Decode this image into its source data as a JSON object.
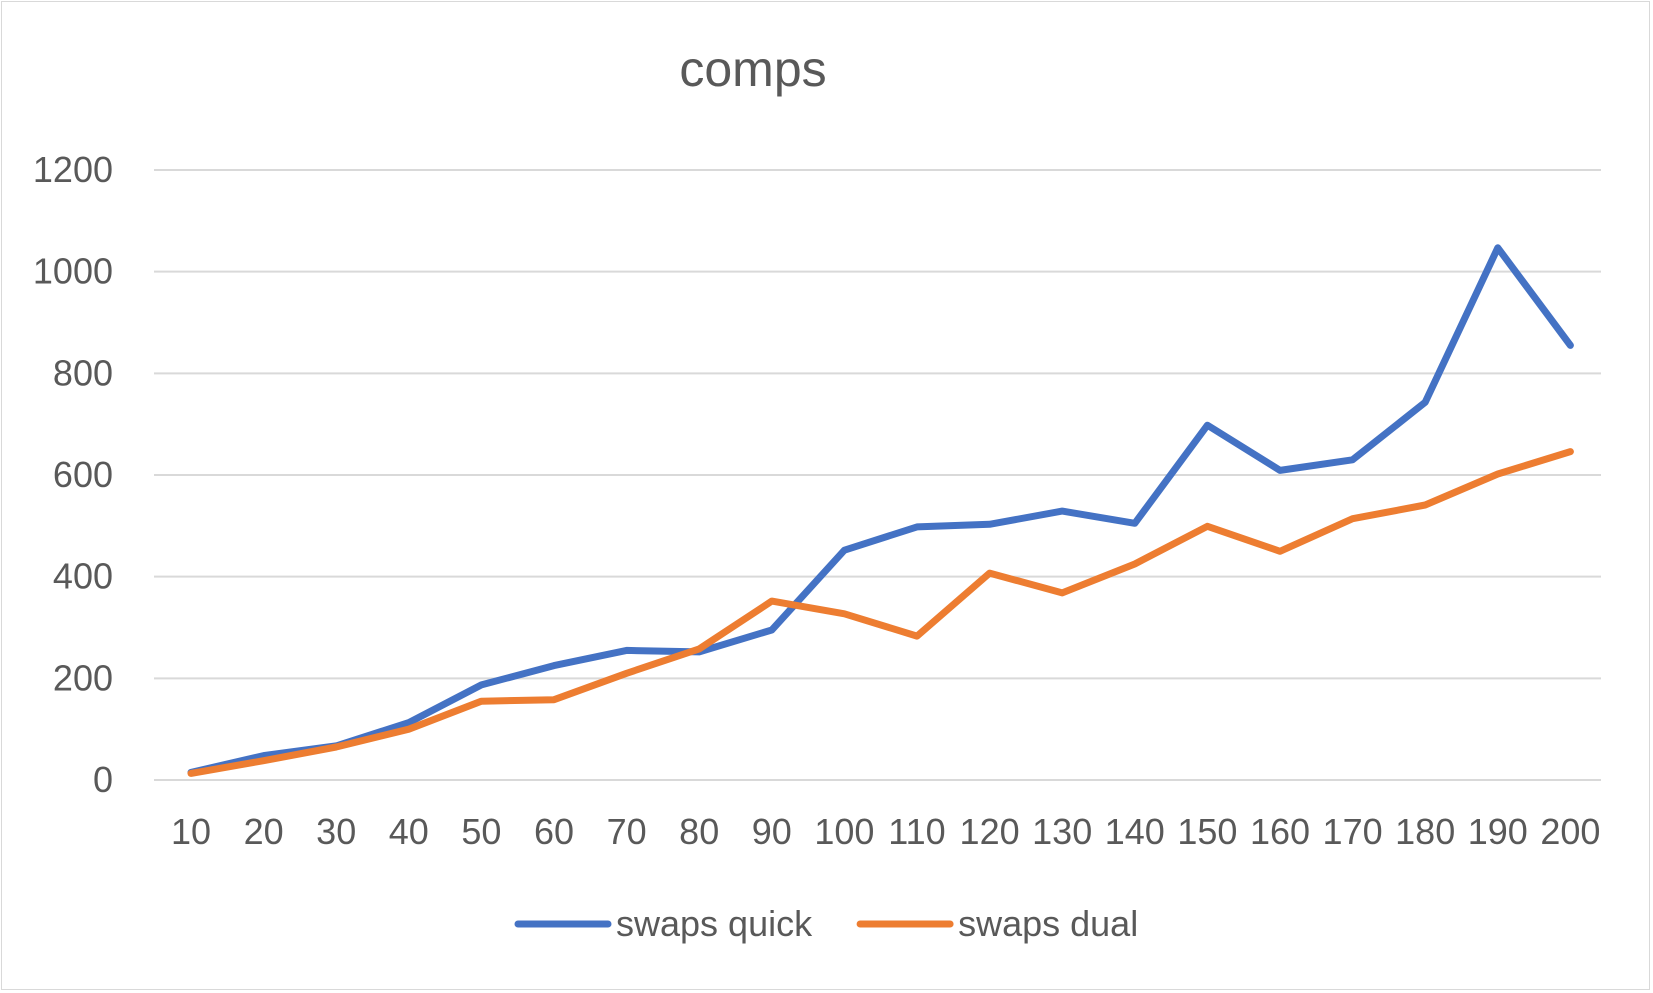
{
  "chart_data": {
    "type": "line",
    "title": "comps",
    "xlabel": "",
    "ylabel": "",
    "x": [
      10,
      20,
      30,
      40,
      50,
      60,
      70,
      80,
      90,
      100,
      110,
      120,
      130,
      140,
      150,
      160,
      170,
      180,
      190,
      200
    ],
    "x_tick_labels": [
      "10",
      "20",
      "30",
      "40",
      "50",
      "60",
      "70",
      "80",
      "90",
      "100",
      "110",
      "120",
      "130",
      "140",
      "150",
      "160",
      "170",
      "180",
      "190",
      "200"
    ],
    "y_tick_labels": [
      "0",
      "200",
      "400",
      "600",
      "800",
      "1000",
      "1200"
    ],
    "ylim": [
      0,
      1200
    ],
    "y_ticks": [
      0,
      200,
      400,
      600,
      800,
      1000,
      1200
    ],
    "grid": true,
    "legend_position": "bottom",
    "series": [
      {
        "name": "swaps quick",
        "color": "#4472C4",
        "values": [
          15,
          48,
          67,
          113,
          187,
          225,
          255,
          252,
          295,
          452,
          498,
          503,
          529,
          505,
          698,
          609,
          630,
          743,
          1047,
          855
        ]
      },
      {
        "name": "swaps dual",
        "color": "#ED7D31",
        "values": [
          13,
          38,
          65,
          100,
          155,
          158,
          210,
          258,
          352,
          327,
          283,
          407,
          368,
          425,
          499,
          450,
          514,
          541,
          602,
          646
        ]
      }
    ]
  }
}
